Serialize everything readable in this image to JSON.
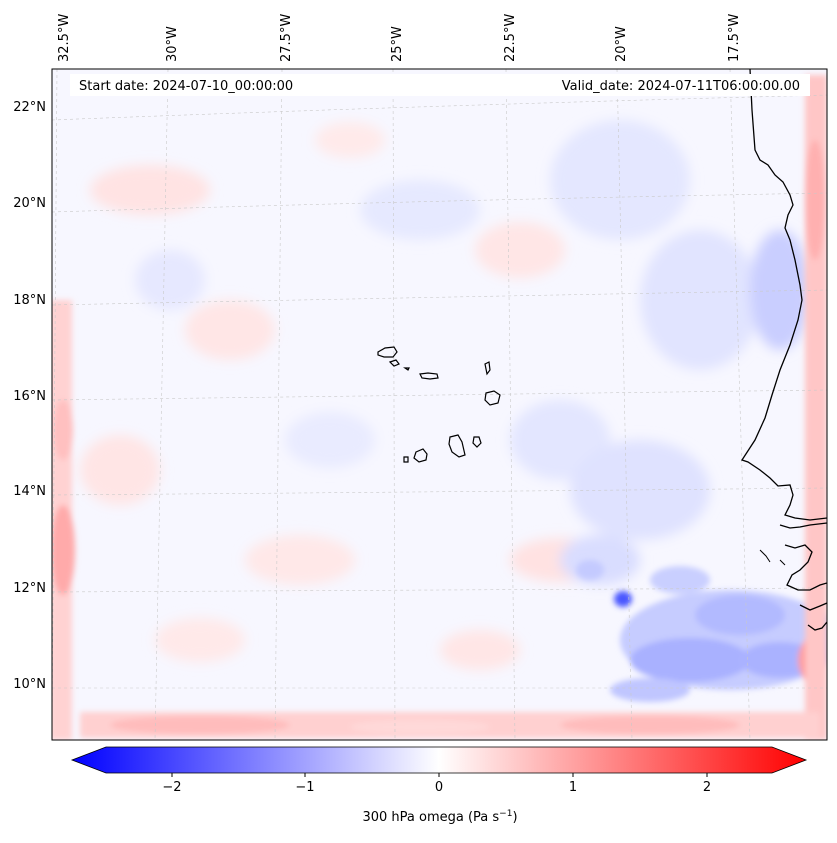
{
  "map": {
    "start_label": "Start date: 2024-07-10_00:00:00",
    "valid_label": "Valid_date: 2024-07-11T06:00:00.00",
    "lon_labels": [
      "32.5°W",
      "30°W",
      "27.5°W",
      "25°W",
      "22.5°W",
      "20°W",
      "17.5°W"
    ],
    "lat_labels": [
      "22°N",
      "20°N",
      "18°N",
      "16°N",
      "14°N",
      "12°N",
      "10°N"
    ],
    "colorbar": {
      "ticks": [
        "−2",
        "−1",
        "0",
        "1",
        "2"
      ],
      "label_main": "300 hPa omega (Pa s",
      "label_sup": "−1",
      "label_end": ")",
      "range": [
        -2.6,
        2.6
      ],
      "colormap": "bwr",
      "extend": "both"
    },
    "colors": {
      "positive": "#ff0000",
      "negative": "#0000ff",
      "neutral": "#ffffff",
      "coastline": "#000000",
      "gridline": "#c9c9c9"
    }
  }
}
